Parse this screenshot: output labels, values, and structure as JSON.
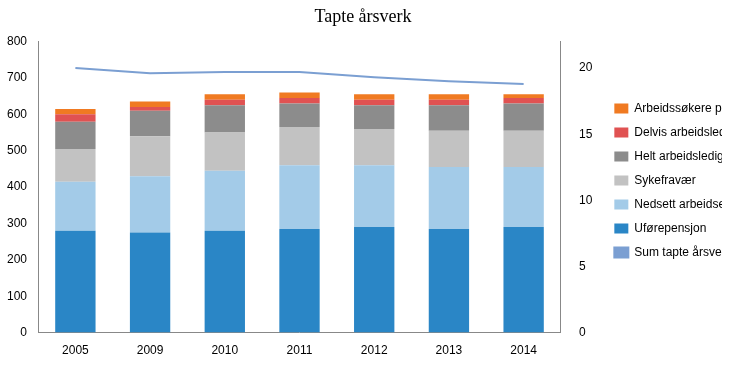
{
  "chart_data": {
    "type": "bar",
    "title": "Tapte årsverk",
    "categories": [
      "2005",
      "2009",
      "2010",
      "2011",
      "2012",
      "2013",
      "2014"
    ],
    "stacked": true,
    "grid": false,
    "legend": "right",
    "ylim": [
      0,
      800
    ],
    "yticks": [
      0,
      100,
      200,
      300,
      400,
      500,
      600,
      700,
      800
    ],
    "y2lim": [
      0,
      22
    ],
    "y2ticks": [
      0,
      5,
      10,
      15,
      20
    ],
    "series": [
      {
        "name": "Uførepensjon",
        "color": "#2a86c6",
        "values": [
          280,
          275,
          280,
          285,
          290,
          285,
          290
        ]
      },
      {
        "name": "Nedsett arbeidsevne",
        "color": "#a3cbe8",
        "values": [
          135,
          155,
          165,
          175,
          170,
          170,
          165
        ]
      },
      {
        "name": "Sykefravær",
        "color": "#c2c2c2",
        "values": [
          90,
          110,
          105,
          105,
          100,
          100,
          100
        ]
      },
      {
        "name": "Helt arbeidsledige",
        "color": "#8c8c8c",
        "values": [
          75,
          70,
          75,
          65,
          65,
          70,
          75
        ]
      },
      {
        "name": "Delvis arbeidsledige",
        "color": "#e05252",
        "values": [
          20,
          10,
          15,
          15,
          15,
          15,
          15
        ]
      },
      {
        "name": "Arbeidssøkere på tiltak",
        "color": "#f07a22",
        "values": [
          15,
          15,
          15,
          15,
          15,
          15,
          10
        ]
      },
      {
        "name": "Sum tapte årsverk",
        "color": "#7b9fd2",
        "type": "line",
        "axis": "y2",
        "values": [
          20.0,
          19.6,
          19.7,
          19.7,
          19.3,
          19.0,
          18.8
        ]
      }
    ]
  }
}
